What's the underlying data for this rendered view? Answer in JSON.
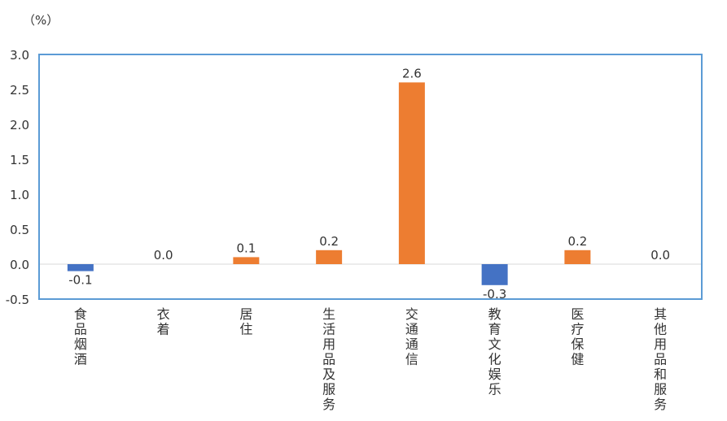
{
  "chart_data": {
    "type": "bar",
    "unit_label": "（%）",
    "categories": [
      "食品烟酒",
      "衣着",
      "居住",
      "生活用品及服务",
      "交通通信",
      "教育文化娱乐",
      "医疗保健",
      "其他用品和服务"
    ],
    "values": [
      -0.1,
      0.0,
      0.1,
      0.2,
      2.6,
      -0.3,
      0.2,
      0.0
    ],
    "data_labels": [
      "-0.1",
      "0.0",
      "0.1",
      "0.2",
      "2.6",
      "-0.3",
      "0.2",
      "0.0"
    ],
    "ylim": [
      -0.5,
      3.0
    ],
    "yticks": [
      "3.0",
      "2.5",
      "2.0",
      "1.5",
      "1.0",
      "0.5",
      "0.0",
      "-0.5"
    ],
    "ytick_values": [
      3.0,
      2.5,
      2.0,
      1.5,
      1.0,
      0.5,
      0.0,
      -0.5
    ],
    "grid": false,
    "colors": {
      "positive": "#ED7D31",
      "negative": "#4472C4",
      "frame": "#5B9BD5",
      "zero_line": "#D9D9D9"
    }
  }
}
